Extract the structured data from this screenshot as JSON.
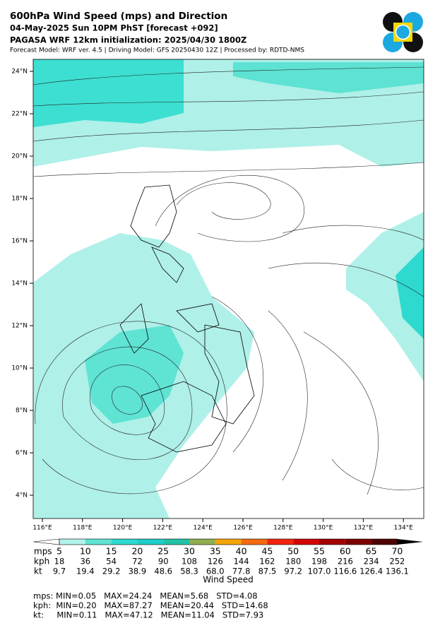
{
  "header": {
    "title": "600hPa Wind Speed (mps) and Direction",
    "line2": "04-May-2025 Sun 10PM PhST [forecast +092]",
    "line3": "PAGASA WRF 12km initialization: 2025/04/30 1800Z",
    "line4": "Forecast Model: WRF ver. 4.5 | Driving Model: GFS 20250430 12Z | Processed by: RDTD-NMS"
  },
  "map": {
    "lat_labels": [
      "24°N",
      "22°N",
      "20°N",
      "18°N",
      "16°N",
      "14°N",
      "12°N",
      "10°N",
      "8°N",
      "6°N",
      "4°N"
    ],
    "lon_labels": [
      "116°E",
      "118°E",
      "120°E",
      "122°E",
      "124°E",
      "126°E",
      "128°E",
      "130°E",
      "132°E",
      "134°E"
    ]
  },
  "colorbar": {
    "label": "Wind Speed",
    "colors": [
      "#b2f2ea",
      "#5fe3d3",
      "#2ed9cf",
      "#1fcdc8",
      "#22c3a6",
      "#8fae52",
      "#f2a40a",
      "#f26a0f",
      "#f0240c",
      "#d20404",
      "#a30000",
      "#7c0000",
      "#4f0000"
    ],
    "rows": [
      {
        "unit": "mps",
        "levels": [
          5,
          10,
          15,
          20,
          25,
          30,
          35,
          40,
          45,
          50,
          55,
          60,
          65,
          70
        ]
      },
      {
        "unit": "kph",
        "levels": [
          18,
          36,
          54,
          72,
          90,
          108,
          126,
          144,
          162,
          180,
          198,
          216,
          234,
          252
        ]
      },
      {
        "unit": "kt",
        "levels": [
          "9.7",
          "19.4",
          "29.2",
          "38.9",
          "48.6",
          "58.3",
          "68.0",
          "77.8",
          "87.5",
          "97.2",
          "107.0",
          "116.6",
          "126.4",
          "136.1"
        ]
      }
    ]
  },
  "stats": [
    "mps: MIN=0.05   MAX=24.24   MEAN=5.68   STD=4.08",
    "kph:  MIN=0.20   MAX=87.27   MEAN=20.44   STD=14.68",
    "kt:     MIN=0.11   MAX=47.12   MEAN=11.04   STD=7.93"
  ]
}
